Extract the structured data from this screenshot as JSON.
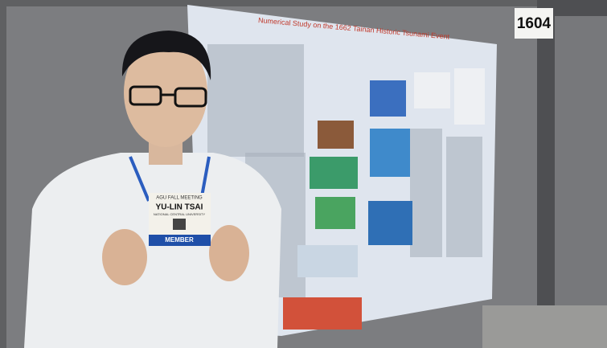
{
  "board_number": "1604",
  "poster": {
    "title": "Numerical Study on the 1662 Tainan Historic Tsunami Event"
  },
  "badge": {
    "event": "AGU FALL MEETING",
    "name": "YU-LIN TSAI",
    "affiliation": "NATIONAL CENTRAL UNIVERSITY",
    "type": "MEMBER"
  }
}
